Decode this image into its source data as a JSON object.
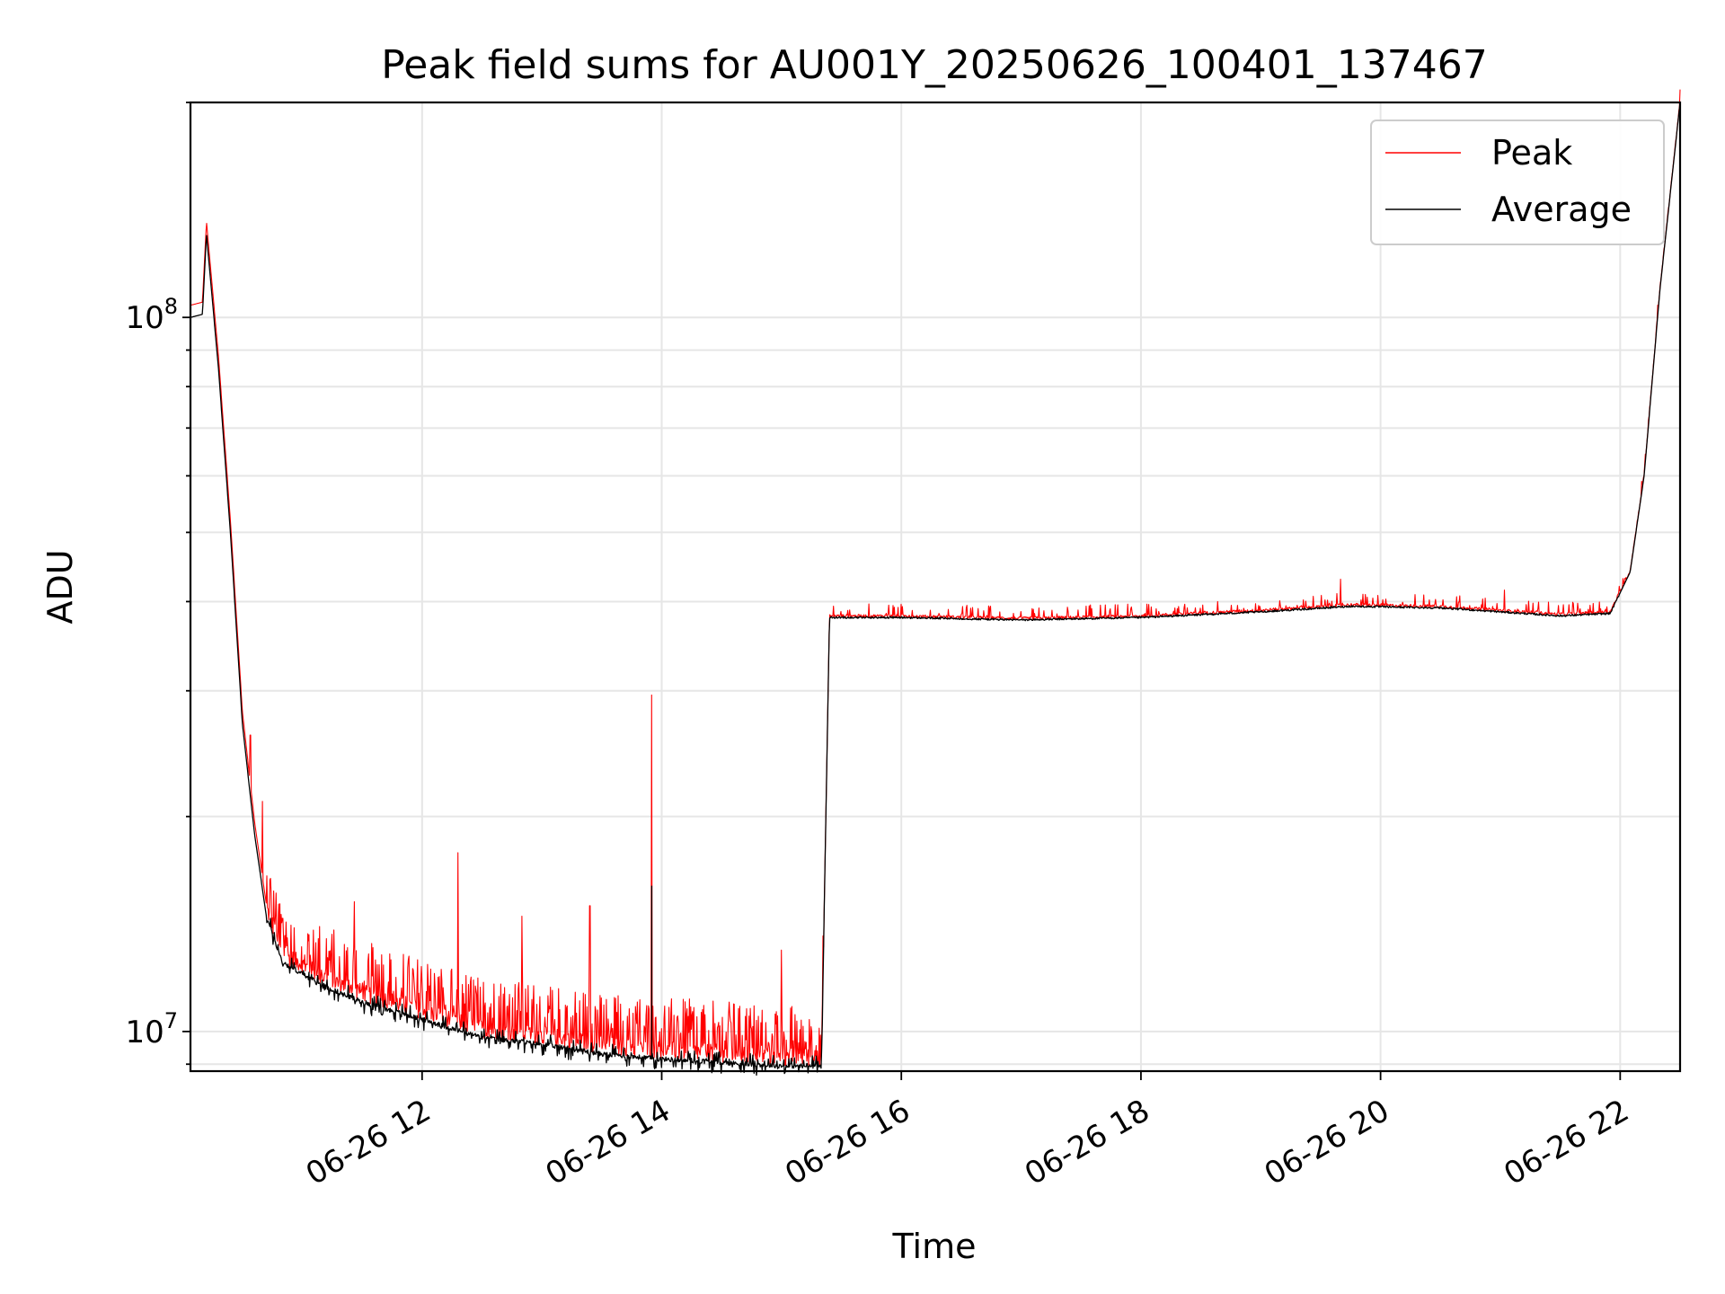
{
  "chart_data": {
    "type": "line",
    "title": "Peak field sums for AU001Y_20250626_100401_137467",
    "xlabel": "Time",
    "ylabel": "ADU",
    "yscale": "log",
    "ylim": [
      8800000,
      200000000
    ],
    "xlim": [
      "06-26 10:04",
      "06-26 22:30"
    ],
    "x_ticks": [
      "06-26 12",
      "06-26 14",
      "06-26 16",
      "06-26 18",
      "06-26 20",
      "06-26 22"
    ],
    "y_ticks": [
      {
        "base": "10",
        "exp": "8"
      },
      {
        "base": "10",
        "exp": "7"
      }
    ],
    "grid": true,
    "legend_position": "upper right",
    "series": [
      {
        "name": "Peak",
        "color": "#ff0000",
        "description": "upper envelope with frequent spikes",
        "spikes": [
          {
            "time": "06-26 10:12",
            "value": 131000000
          },
          {
            "time": "06-26 10:34",
            "value": 26000000
          },
          {
            "time": "06-26 10:40",
            "value": 21000000
          },
          {
            "time": "06-26 11:26",
            "value": 15200000
          },
          {
            "time": "06-26 12:18",
            "value": 17800000
          },
          {
            "time": "06-26 12:50",
            "value": 14500000
          },
          {
            "time": "06-26 13:24",
            "value": 15000000
          },
          {
            "time": "06-26 13:55",
            "value": 29600000
          },
          {
            "time": "06-26 15:00",
            "value": 13000000
          },
          {
            "time": "06-26 19:40",
            "value": 43000000
          },
          {
            "time": "06-26 21:02",
            "value": 41500000
          }
        ]
      },
      {
        "name": "Average",
        "color": "#000000",
        "points": [
          [
            "06-26 10:04",
            100000000
          ],
          [
            "06-26 10:10",
            101000000
          ],
          [
            "06-26 10:12",
            131000000
          ],
          [
            "06-26 10:18",
            85000000
          ],
          [
            "06-26 10:24",
            50000000
          ],
          [
            "06-26 10:30",
            27000000
          ],
          [
            "06-26 10:36",
            19000000
          ],
          [
            "06-26 10:42",
            14500000
          ],
          [
            "06-26 10:50",
            12500000
          ],
          [
            "06-26 11:10",
            11600000
          ],
          [
            "06-26 11:30",
            11000000
          ],
          [
            "06-26 12:00",
            10400000
          ],
          [
            "06-26 12:30",
            9800000
          ],
          [
            "06-26 13:00",
            9600000
          ],
          [
            "06-26 13:30",
            9300000
          ],
          [
            "06-26 14:00",
            9150000
          ],
          [
            "06-26 14:30",
            9050000
          ],
          [
            "06-26 15:00",
            8950000
          ],
          [
            "06-26 15:20",
            8950000
          ],
          [
            "06-26 15:24",
            38000000
          ],
          [
            "06-26 16:00",
            38000000
          ],
          [
            "06-26 17:00",
            37700000
          ],
          [
            "06-26 18:00",
            38000000
          ],
          [
            "06-26 19:00",
            38700000
          ],
          [
            "06-26 19:45",
            39400000
          ],
          [
            "06-26 20:30",
            39200000
          ],
          [
            "06-26 21:30",
            38200000
          ],
          [
            "06-26 21:55",
            38500000
          ],
          [
            "06-26 22:05",
            44000000
          ],
          [
            "06-26 22:12",
            60000000
          ],
          [
            "06-26 22:20",
            110000000
          ],
          [
            "06-26 22:30",
            200000000
          ]
        ]
      }
    ]
  }
}
